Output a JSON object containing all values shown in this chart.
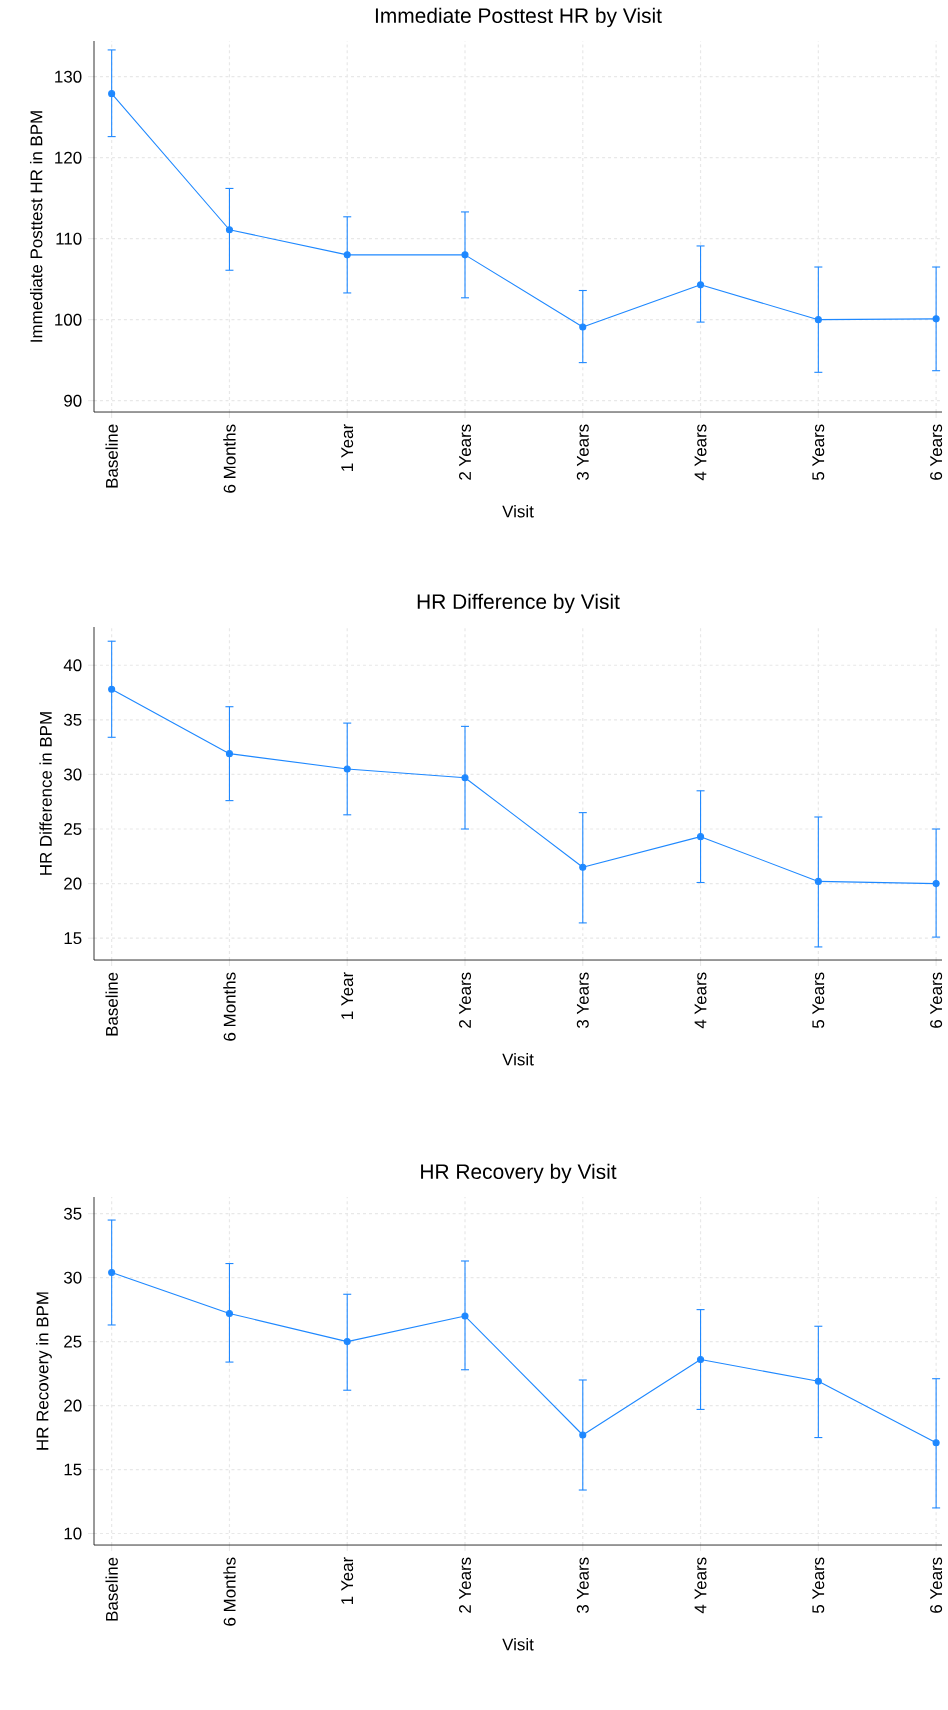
{
  "chart_data": [
    {
      "type": "line",
      "title": "Immediate Posttest HR by Visit",
      "xlabel": "Visit",
      "ylabel": "Immediate Posttest HR in BPM",
      "color": "#1e88ff",
      "marker": "circle",
      "grid": true,
      "categories": [
        "Baseline",
        "6 Months",
        "1 Year",
        "2 Years",
        "3 Years",
        "4 Years",
        "5 Years",
        "6 Years"
      ],
      "values": [
        127.9,
        111.1,
        108.0,
        108.0,
        99.1,
        104.3,
        100.0,
        100.1
      ],
      "errors": [
        [
          122.6,
          133.3
        ],
        [
          106.1,
          116.2
        ],
        [
          103.3,
          112.7
        ],
        [
          102.7,
          113.3
        ],
        [
          94.7,
          103.6
        ],
        [
          99.7,
          109.1
        ],
        [
          93.5,
          106.5
        ],
        [
          93.7,
          106.5
        ]
      ],
      "ylim": [
        88.6,
        134.4
      ],
      "yticks": [
        90,
        100,
        110,
        120,
        130
      ]
    },
    {
      "type": "line",
      "title": "HR Difference by Visit",
      "xlabel": "Visit",
      "ylabel": "HR Difference in BPM",
      "color": "#1e88ff",
      "marker": "circle",
      "grid": true,
      "categories": [
        "Baseline",
        "6 Months",
        "1 Year",
        "2 Years",
        "3 Years",
        "4 Years",
        "5 Years",
        "6 Years"
      ],
      "values": [
        37.8,
        31.9,
        30.5,
        29.7,
        21.5,
        24.3,
        20.2,
        20.0
      ],
      "errors": [
        [
          33.4,
          42.2
        ],
        [
          27.6,
          36.2
        ],
        [
          26.3,
          34.7
        ],
        [
          25.0,
          34.4
        ],
        [
          16.4,
          26.5
        ],
        [
          20.1,
          28.5
        ],
        [
          14.2,
          26.1
        ],
        [
          15.1,
          25.0
        ]
      ],
      "ylim": [
        13,
        43.5
      ],
      "yticks": [
        15,
        20,
        25,
        30,
        35,
        40
      ]
    },
    {
      "type": "line",
      "title": "HR Recovery by Visit",
      "xlabel": "Visit",
      "ylabel": "HR Recovery in BPM",
      "color": "#1e88ff",
      "marker": "circle",
      "grid": true,
      "categories": [
        "Baseline",
        "6 Months",
        "1 Year",
        "2 Years",
        "3 Years",
        "4 Years",
        "5 Years",
        "6 Years"
      ],
      "values": [
        30.4,
        27.2,
        25.0,
        27.0,
        17.7,
        23.6,
        21.9,
        17.1
      ],
      "errors": [
        [
          26.3,
          34.5
        ],
        [
          23.4,
          31.1
        ],
        [
          21.2,
          28.7
        ],
        [
          22.8,
          31.3
        ],
        [
          13.4,
          22.0
        ],
        [
          19.7,
          27.5
        ],
        [
          17.5,
          26.2
        ],
        [
          12.0,
          22.1
        ]
      ],
      "ylim": [
        9.1,
        36.3
      ],
      "yticks": [
        10,
        15,
        20,
        25,
        30,
        35
      ]
    }
  ]
}
